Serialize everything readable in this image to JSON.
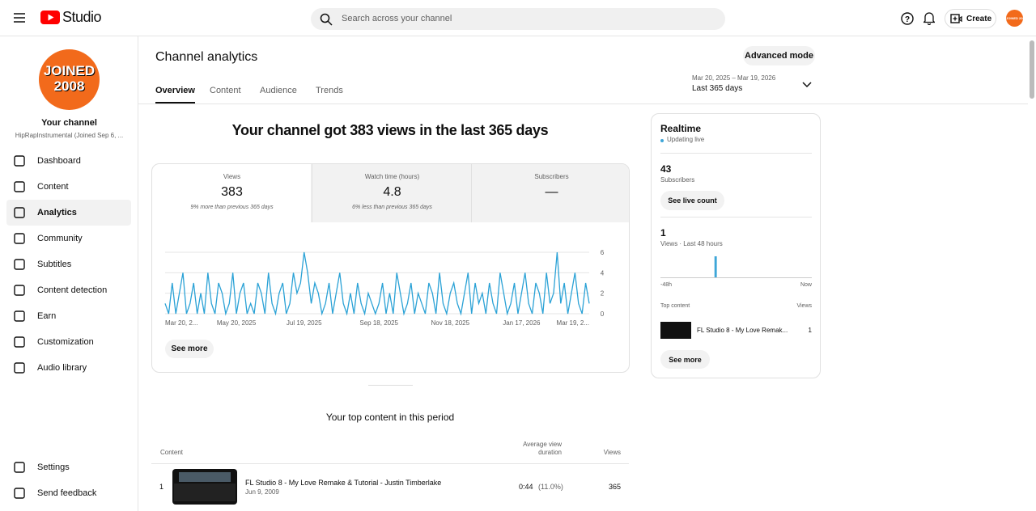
{
  "header": {
    "logo": "Studio",
    "search_placeholder": "Search across your channel",
    "create": "Create",
    "avatar_text": "JOINED 2008"
  },
  "sidebar": {
    "avatar_lines": [
      "JOINED",
      "2008"
    ],
    "channel_label": "Your channel",
    "channel_name": "HipRapInstrumental (Joined Sep 6, ...",
    "nav": [
      "Dashboard",
      "Content",
      "Analytics",
      "Community",
      "Subtitles",
      "Content detection",
      "Earn",
      "Customization",
      "Audio library"
    ],
    "bottom": [
      "Settings",
      "Send feedback"
    ]
  },
  "page": {
    "title": "Channel analytics",
    "advanced": "Advanced mode",
    "tabs": [
      "Overview",
      "Content",
      "Audience",
      "Trends"
    ],
    "date_range": "Mar 20, 2025 – Mar 19, 2026",
    "period": "Last 365 days",
    "headline": "Your channel got 383 views in the last 365 days",
    "metrics": [
      {
        "label": "Views",
        "value": "383",
        "note": "9% more than previous 365 days"
      },
      {
        "label": "Watch time (hours)",
        "value": "4.8",
        "note": "6% less than previous 365 days"
      },
      {
        "label": "Subscribers",
        "value": "—"
      }
    ],
    "see_more": "See more",
    "top_content": {
      "title": "Your top content in this period",
      "columns": [
        "Content",
        "Average view duration",
        "Views"
      ],
      "rows": [
        {
          "rank": "1",
          "title": "FL Studio 8 - My Love Remake & Tutorial - Justin Timberlake",
          "date": "Jun 9, 2009",
          "avg": "0:44",
          "pct": "(11.0%)",
          "views": "365"
        }
      ]
    }
  },
  "realtime": {
    "title": "Realtime",
    "status": "Updating live",
    "subscribers": "43",
    "subscribers_label": "Subscribers",
    "live_count": "See live count",
    "views": "1",
    "views_label": "Views · Last 48 hours",
    "start_label": "-48h",
    "end_label": "Now",
    "top_label": "Top content",
    "views_col": "Views",
    "top_title": "FL Studio 8 - My Love Remak...",
    "top_views": "1",
    "see_more": "See more",
    "chart": {
      "type": "bar",
      "color": "#3ea6d8",
      "ylim": [
        0,
        1
      ],
      "values": [
        0,
        0,
        0,
        0,
        0,
        0,
        0,
        0,
        0,
        0,
        0,
        0,
        0,
        0,
        0,
        0,
        0,
        1,
        0,
        0,
        0,
        0,
        0,
        0,
        0,
        0,
        0,
        0,
        0,
        0,
        0,
        0,
        0,
        0,
        0,
        0,
        0,
        0,
        0,
        0,
        0,
        0,
        0,
        0,
        0,
        0,
        0,
        0
      ]
    }
  },
  "chart_data": {
    "type": "line",
    "color": "#2ba2d6",
    "ylim": [
      0,
      6
    ],
    "yticks": [
      0,
      2,
      4,
      6
    ],
    "grid": true,
    "categories": [
      "Mar 20, 2...",
      null,
      null,
      null,
      null,
      null,
      null,
      null,
      null,
      null,
      null,
      null,
      null,
      null,
      null,
      null,
      null,
      null,
      null,
      null,
      "May 20, 2025",
      null,
      null,
      null,
      null,
      null,
      null,
      null,
      null,
      null,
      null,
      null,
      null,
      null,
      null,
      null,
      null,
      null,
      null,
      "Jul 19, 2025",
      null,
      null,
      null,
      null,
      null,
      null,
      null,
      null,
      null,
      null,
      null,
      null,
      null,
      null,
      null,
      null,
      null,
      null,
      null,
      null,
      "Sep 18, 2025",
      null,
      null,
      null,
      null,
      null,
      null,
      null,
      null,
      null,
      null,
      null,
      null,
      null,
      null,
      null,
      null,
      null,
      null,
      null,
      "Nov 18, 2025",
      null,
      null,
      null,
      null,
      null,
      null,
      null,
      null,
      null,
      null,
      null,
      null,
      null,
      null,
      null,
      null,
      null,
      null,
      null,
      "Jan 17, 2026",
      null,
      null,
      null,
      null,
      null,
      null,
      null,
      null,
      null,
      null,
      null,
      null,
      null,
      null,
      null,
      null,
      null,
      null,
      "Mar 19, 2..."
    ],
    "values": [
      1,
      0,
      3,
      0,
      2,
      4,
      0,
      1,
      3,
      0,
      2,
      0,
      4,
      1,
      0,
      3,
      2,
      0,
      1,
      4,
      0,
      2,
      3,
      0,
      1,
      0,
      3,
      2,
      0,
      4,
      1,
      0,
      2,
      3,
      0,
      1,
      4,
      2,
      3,
      6,
      4,
      1,
      3,
      2,
      0,
      1,
      3,
      0,
      2,
      4,
      1,
      0,
      2,
      0,
      3,
      1,
      0,
      2,
      1,
      0,
      1,
      3,
      0,
      2,
      0,
      4,
      2,
      0,
      1,
      3,
      0,
      2,
      1,
      0,
      3,
      2,
      0,
      4,
      1,
      0,
      2,
      3,
      1,
      0,
      2,
      4,
      0,
      3,
      1,
      2,
      0,
      3,
      1,
      0,
      4,
      2,
      0,
      1,
      3,
      0,
      2,
      4,
      1,
      0,
      3,
      2,
      0,
      4,
      1,
      2,
      6,
      1,
      3,
      0,
      2,
      4,
      1,
      0,
      3,
      1
    ]
  }
}
